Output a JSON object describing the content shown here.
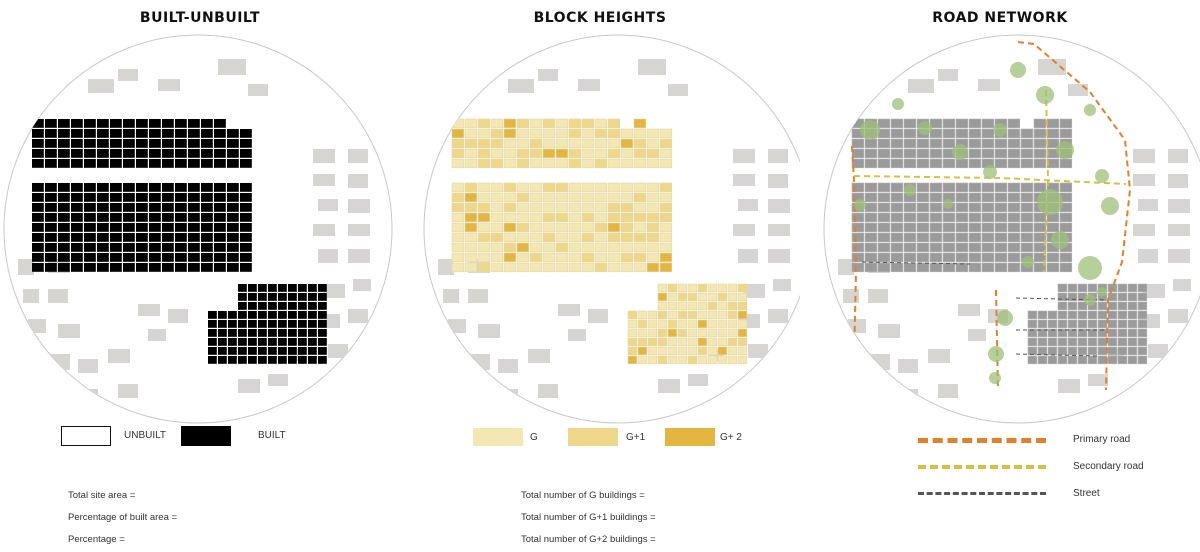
{
  "panels": [
    {
      "title": "BUILT-UNBUILT",
      "legend": [
        {
          "label": "UNBUILT",
          "color": "#ffffff"
        },
        {
          "label": "BUILT",
          "color": "#000000"
        }
      ],
      "stats": [
        "Total site area =",
        "Percentage of built area =",
        "Percentage ="
      ]
    },
    {
      "title": "BLOCK HEIGHTS",
      "legend": [
        {
          "label": "G",
          "color": "#f3e7b4"
        },
        {
          "label": "G+1",
          "color": "#eed68a"
        },
        {
          "label": "G+ 2",
          "color": "#e2b640"
        }
      ],
      "stats": [
        "Total number of G buildings =",
        "Total number of G+1 buildings =",
        "Total number of G+2 buildings ="
      ]
    },
    {
      "title": "ROAD NETWORK",
      "legend": [
        {
          "label": "Primary road",
          "color": "#e0812e"
        },
        {
          "label": "Secondary road",
          "color": "#d9c040"
        },
        {
          "label": "Street",
          "color": "#555555"
        }
      ]
    }
  ],
  "colors": {
    "context_building": "#d7d5d2",
    "built": "#000000",
    "g": "#f3e7b4",
    "g1": "#eed68a",
    "g2": "#e2b640",
    "gray_block": "#9b9b9b",
    "tree": "#9dbf7a"
  }
}
